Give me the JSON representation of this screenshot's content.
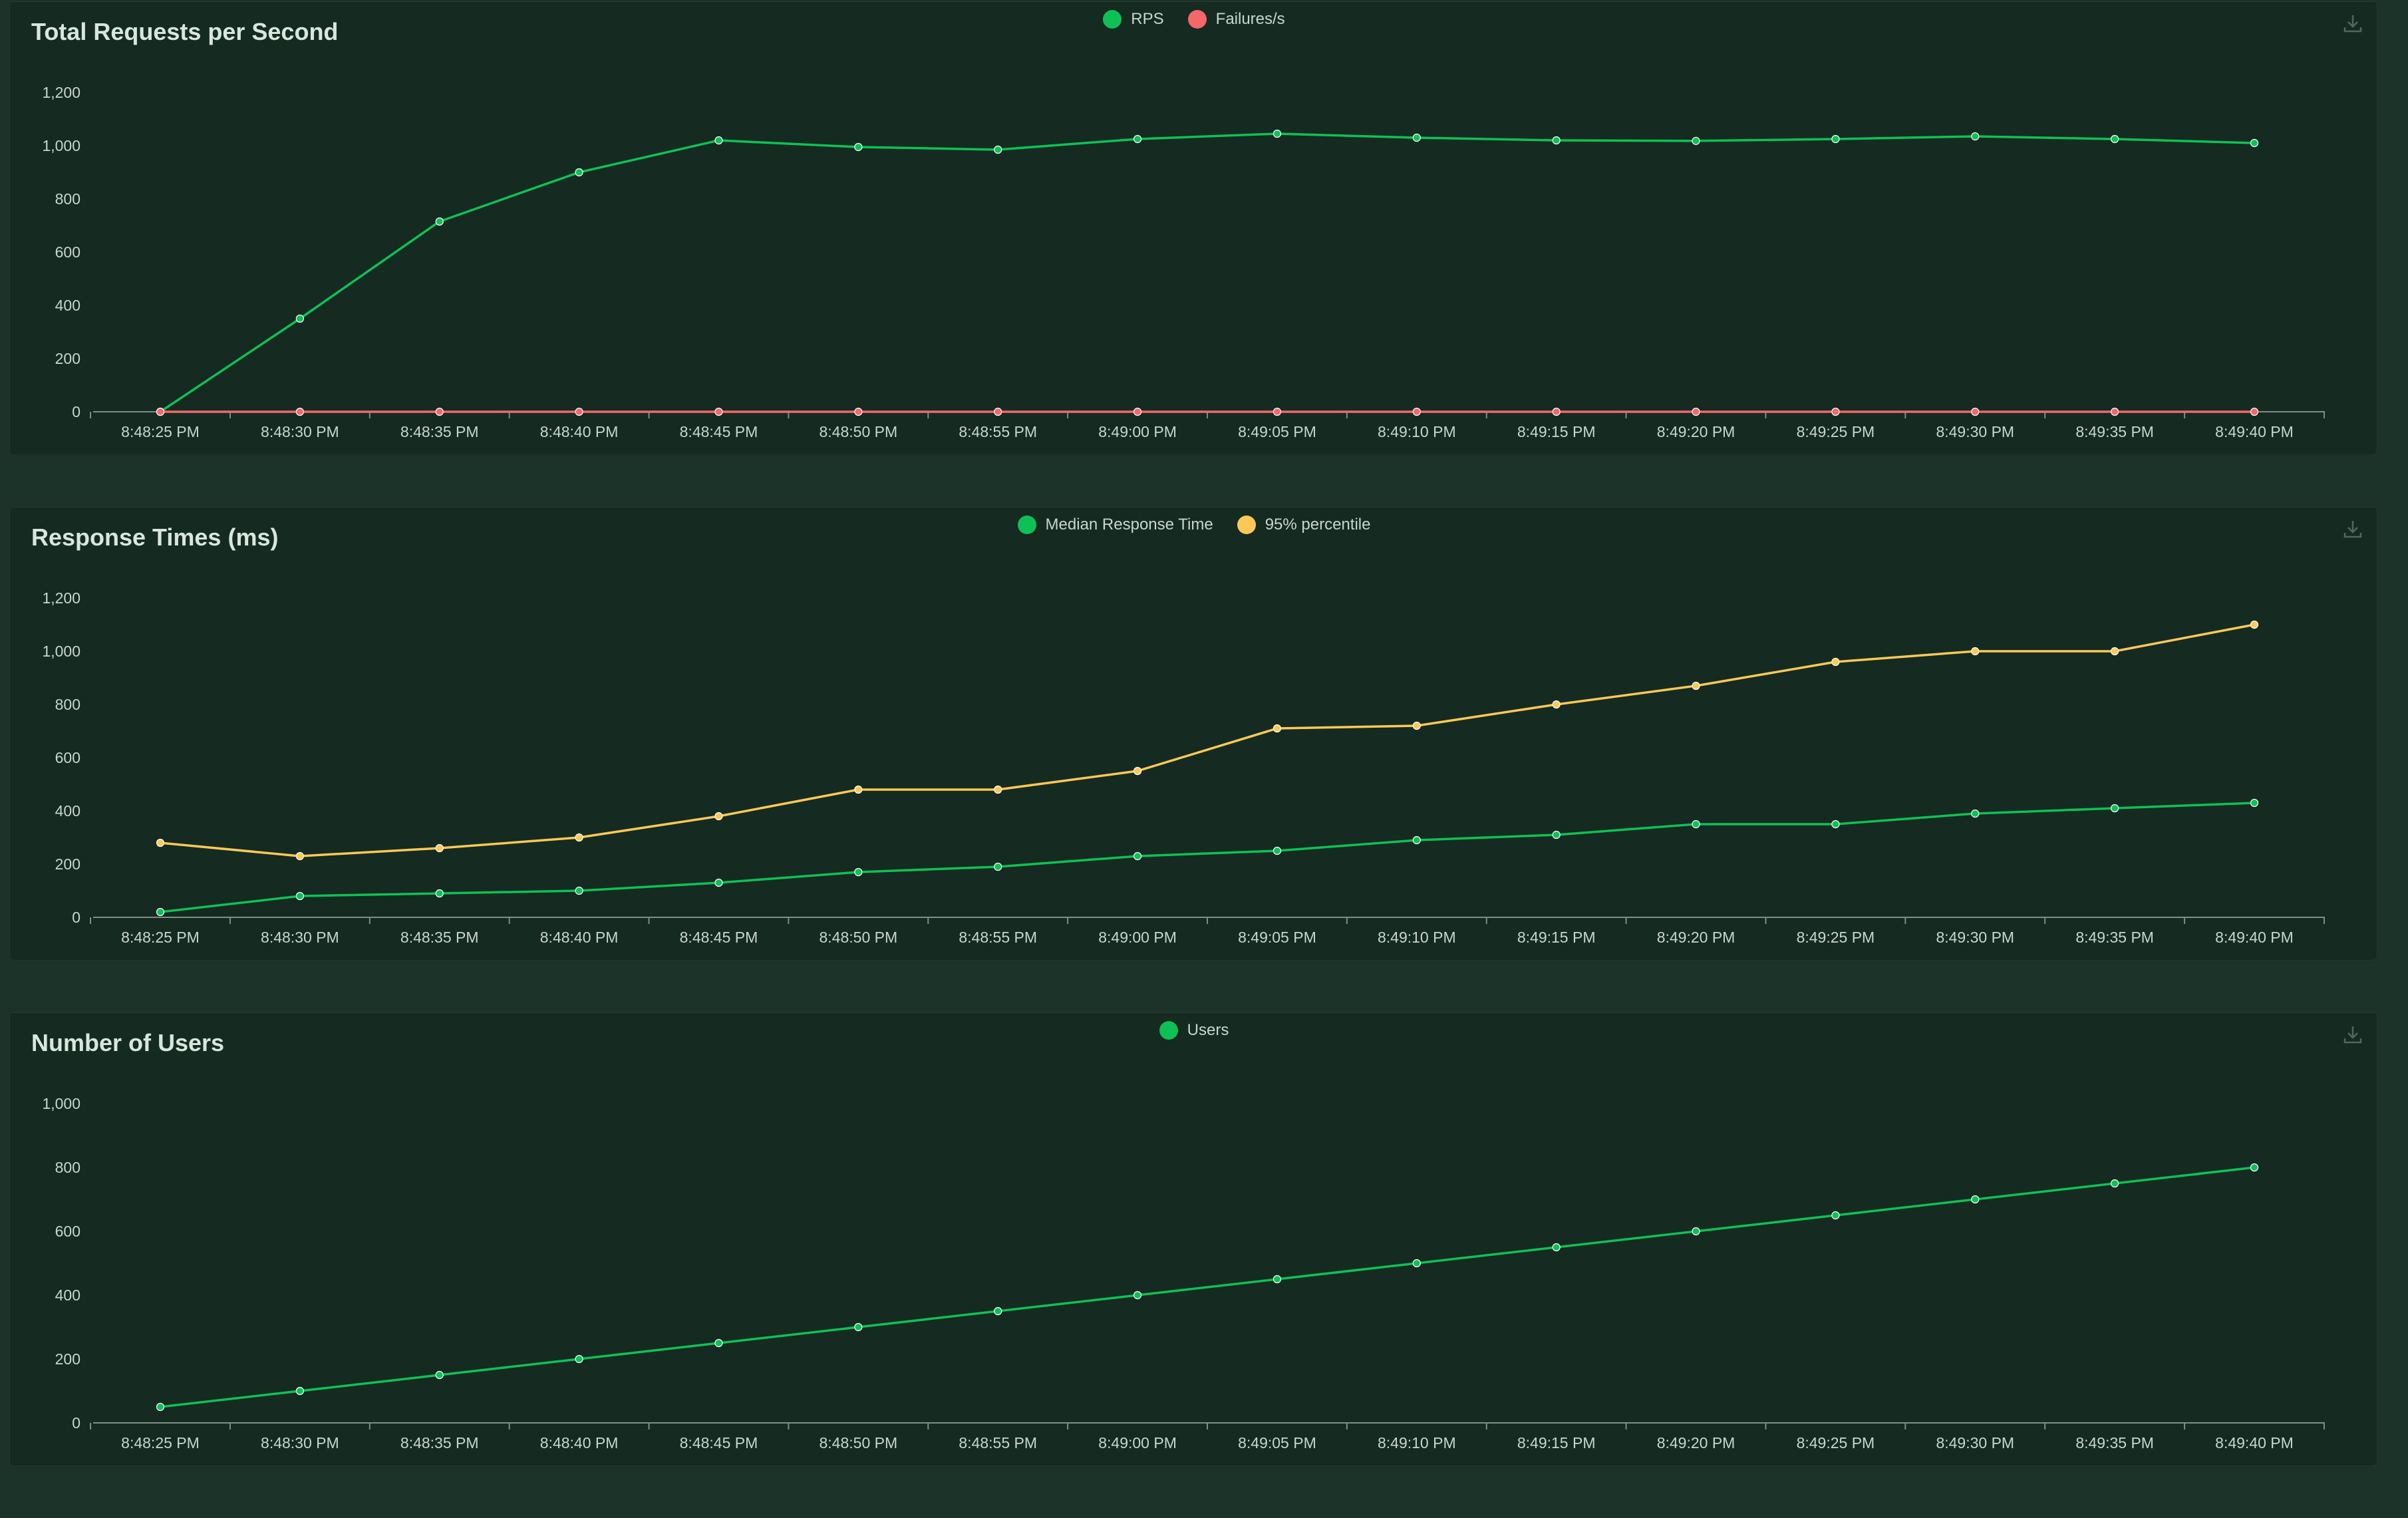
{
  "theme": {
    "page_bg": "#1b3328",
    "panel_bg": "#152a21",
    "axis_color": "#7d8f85",
    "tick_text": "#c9d6ce"
  },
  "chart_data": [
    {
      "type": "line",
      "title": "Total Requests per Second",
      "x": [
        "8:48:25 PM",
        "8:48:30 PM",
        "8:48:35 PM",
        "8:48:40 PM",
        "8:48:45 PM",
        "8:48:50 PM",
        "8:48:55 PM",
        "8:49:00 PM",
        "8:49:05 PM",
        "8:49:10 PM",
        "8:49:15 PM",
        "8:49:20 PM",
        "8:49:25 PM",
        "8:49:30 PM",
        "8:49:35 PM",
        "8:49:40 PM"
      ],
      "yticks": [
        0,
        200,
        400,
        600,
        800,
        1000,
        1200
      ],
      "ytick_labels": [
        "0",
        "200",
        "400",
        "600",
        "800",
        "1,000",
        "1,200"
      ],
      "ylim": [
        0,
        1200
      ],
      "legend_position": "top-center",
      "series": [
        {
          "name": "RPS",
          "color": "#0ec155",
          "values": [
            0,
            350,
            715,
            900,
            1020,
            995,
            985,
            1025,
            1045,
            1030,
            1020,
            1018,
            1025,
            1035,
            1025,
            1010
          ]
        },
        {
          "name": "Failures/s",
          "color": "#f76769",
          "values": [
            0,
            0,
            0,
            0,
            0,
            0,
            0,
            0,
            0,
            0,
            0,
            0,
            0,
            0,
            0,
            0
          ]
        }
      ]
    },
    {
      "type": "line",
      "title": "Response Times (ms)",
      "x": [
        "8:48:25 PM",
        "8:48:30 PM",
        "8:48:35 PM",
        "8:48:40 PM",
        "8:48:45 PM",
        "8:48:50 PM",
        "8:48:55 PM",
        "8:49:00 PM",
        "8:49:05 PM",
        "8:49:10 PM",
        "8:49:15 PM",
        "8:49:20 PM",
        "8:49:25 PM",
        "8:49:30 PM",
        "8:49:35 PM",
        "8:49:40 PM"
      ],
      "yticks": [
        0,
        200,
        400,
        600,
        800,
        1000,
        1200
      ],
      "ytick_labels": [
        "0",
        "200",
        "400",
        "600",
        "800",
        "1,000",
        "1,200"
      ],
      "ylim": [
        0,
        1200
      ],
      "legend_position": "top-center",
      "series": [
        {
          "name": "Median Response Time",
          "color": "#0ec155",
          "values": [
            20,
            80,
            90,
            100,
            130,
            170,
            190,
            230,
            250,
            290,
            310,
            350,
            350,
            390,
            410,
            430
          ]
        },
        {
          "name": "95% percentile",
          "color": "#fdc956",
          "values": [
            280,
            230,
            260,
            300,
            380,
            480,
            480,
            550,
            710,
            720,
            800,
            870,
            960,
            1000,
            1000,
            1100
          ]
        }
      ]
    },
    {
      "type": "line",
      "title": "Number of Users",
      "x": [
        "8:48:25 PM",
        "8:48:30 PM",
        "8:48:35 PM",
        "8:48:40 PM",
        "8:48:45 PM",
        "8:48:50 PM",
        "8:48:55 PM",
        "8:49:00 PM",
        "8:49:05 PM",
        "8:49:10 PM",
        "8:49:15 PM",
        "8:49:20 PM",
        "8:49:25 PM",
        "8:49:30 PM",
        "8:49:35 PM",
        "8:49:40 PM"
      ],
      "yticks": [
        0,
        200,
        400,
        600,
        800,
        1000
      ],
      "ytick_labels": [
        "0",
        "200",
        "400",
        "600",
        "800",
        "1,000"
      ],
      "ylim": [
        0,
        1000
      ],
      "legend_position": "top-center",
      "series": [
        {
          "name": "Users",
          "color": "#0ec155",
          "values": [
            50,
            100,
            150,
            200,
            250,
            300,
            350,
            400,
            450,
            500,
            550,
            600,
            650,
            700,
            750,
            800
          ]
        }
      ]
    }
  ]
}
